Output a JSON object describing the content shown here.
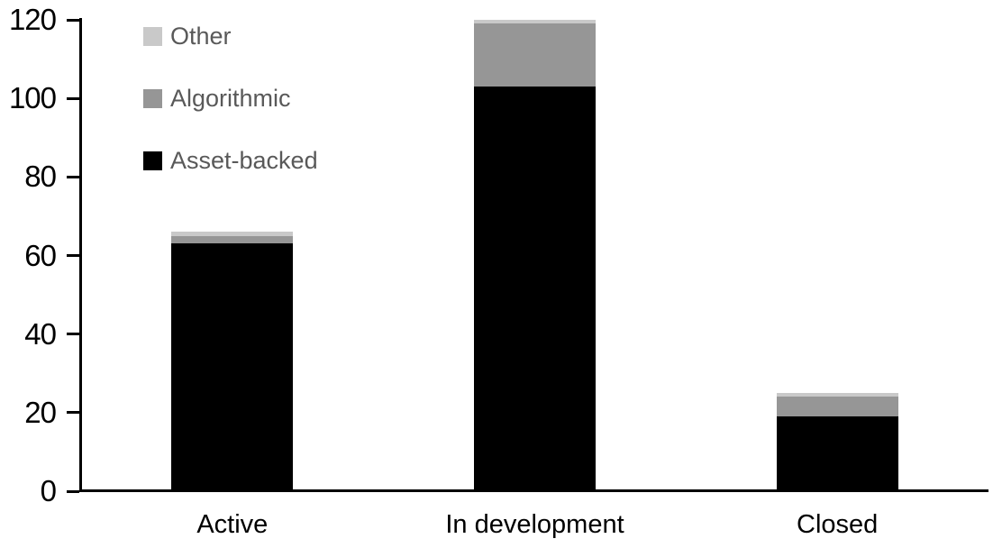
{
  "chart_data": {
    "type": "bar",
    "stacked": true,
    "title": "",
    "xlabel": "",
    "ylabel": "",
    "categories": [
      "Active",
      "In development",
      "Closed"
    ],
    "series": [
      {
        "name": "Asset-backed",
        "color": "#000000",
        "values": [
          63,
          103,
          19
        ]
      },
      {
        "name": "Algorithmic",
        "color": "#969696",
        "values": [
          2,
          16,
          5
        ]
      },
      {
        "name": "Other",
        "color": "#c9c9c9",
        "values": [
          1,
          1,
          1
        ]
      }
    ],
    "totals": [
      66,
      120,
      25
    ],
    "ylim": [
      0,
      120
    ],
    "yticks": [
      0,
      20,
      40,
      60,
      80,
      100,
      120
    ],
    "grid": false,
    "legend": {
      "position": "top-left",
      "order": [
        "Other",
        "Algorithmic",
        "Asset-backed"
      ],
      "text_color": "#595959"
    },
    "colors": {
      "axis": "#000000",
      "tick_label": "#000000",
      "category_label": "#000000",
      "background": "#ffffff"
    }
  }
}
